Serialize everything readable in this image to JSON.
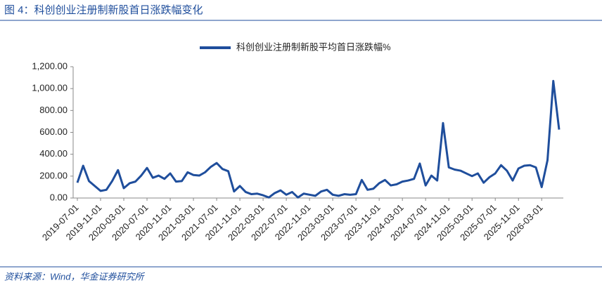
{
  "chart_data": {
    "type": "line",
    "title": "图 4：科创创业注册制新股首日涨跌幅变化",
    "source": "资料来源：Wind，华金证券研究所",
    "categories": [
      "2019-07-01",
      null,
      null,
      null,
      "2019-11-01",
      null,
      null,
      null,
      "2020-03-01",
      null,
      null,
      null,
      "2020-07-01",
      null,
      null,
      null,
      "2020-11-01",
      null,
      null,
      null,
      "2021-03-01",
      null,
      null,
      null,
      "2021-07-01",
      null,
      null,
      null,
      "2021-11-01",
      null,
      null,
      null,
      "2022-03-01",
      null,
      null,
      null,
      "2022-07-01",
      null,
      null,
      null,
      "2022-11-01",
      null,
      null,
      null,
      "2023-03-01",
      null,
      null,
      null,
      "2023-07-01",
      null,
      null,
      null,
      "2023-11-01",
      null,
      null,
      null,
      "2024-03-01",
      null,
      null,
      null,
      "2024-07-01",
      null,
      null,
      null,
      "2024-11-01",
      null,
      null,
      null,
      "2025-03-01",
      null,
      null,
      null,
      "2025-07-01",
      null,
      null,
      null,
      "2025-11-01",
      null,
      null,
      null,
      "2026-03-01",
      null,
      null,
      null
    ],
    "series": [
      {
        "name": "科创创业注册制新股平均首日涨跌幅%",
        "color": "#1f4e9c",
        "values": [
          140,
          295,
          155,
          110,
          65,
          75,
          155,
          255,
          90,
          135,
          150,
          205,
          275,
          185,
          205,
          175,
          225,
          150,
          155,
          235,
          210,
          205,
          235,
          285,
          320,
          265,
          245,
          60,
          110,
          55,
          35,
          40,
          25,
          5,
          45,
          70,
          30,
          55,
          5,
          40,
          30,
          20,
          60,
          75,
          30,
          20,
          35,
          30,
          35,
          165,
          75,
          85,
          135,
          165,
          115,
          125,
          150,
          160,
          175,
          315,
          115,
          205,
          160,
          685,
          280,
          260,
          250,
          225,
          200,
          225,
          140,
          190,
          225,
          300,
          250,
          160,
          270,
          295,
          300,
          280,
          100,
          345,
          1070,
          625
        ]
      }
    ],
    "ylim": [
      0,
      1200
    ],
    "yticks": [
      {
        "value": 0,
        "label": "0.00"
      },
      {
        "value": 200,
        "label": "200.00"
      },
      {
        "value": 400,
        "label": "400.00"
      },
      {
        "value": 600,
        "label": "600.00"
      },
      {
        "value": 800,
        "label": "800.00"
      },
      {
        "value": 1000,
        "label": "1,000.00"
      },
      {
        "value": 1200,
        "label": "1,200.00"
      }
    ],
    "legend": "top"
  }
}
